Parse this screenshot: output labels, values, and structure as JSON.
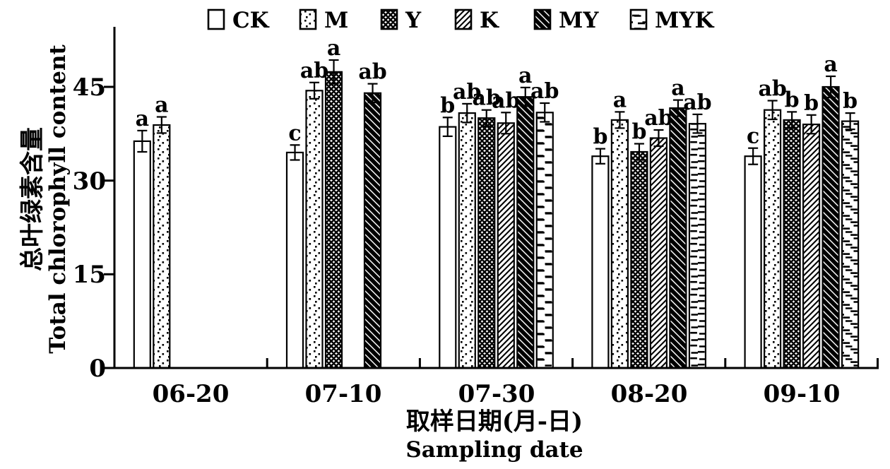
{
  "figure": {
    "background": "#ffffff",
    "foreground": "#000000"
  },
  "chart_data": {
    "type": "bar",
    "title": "",
    "categories": [
      "06-20",
      "07-10",
      "07-30",
      "08-20",
      "09-10"
    ],
    "series": [
      {
        "name": "CK",
        "pattern": "plain",
        "values": [
          36.3,
          34.5,
          38.6,
          33.9,
          33.9
        ],
        "errors": [
          1.7,
          1.2,
          1.5,
          1.2,
          1.3
        ],
        "letters": [
          "a",
          "c",
          "b",
          "b",
          "c"
        ]
      },
      {
        "name": "M",
        "pattern": "dots",
        "values": [
          38.9,
          44.4,
          40.8,
          39.7,
          41.3
        ],
        "errors": [
          1.3,
          1.3,
          1.5,
          1.3,
          1.5
        ],
        "letters": [
          "a",
          "ab",
          "ab",
          "a",
          "ab"
        ]
      },
      {
        "name": "Y",
        "pattern": "crosshatch",
        "values": [
          null,
          47.4,
          40.0,
          34.6,
          39.7
        ],
        "errors": [
          null,
          1.9,
          1.3,
          1.3,
          1.3
        ],
        "letters": [
          null,
          "a",
          "ab",
          "b",
          "b"
        ]
      },
      {
        "name": "K",
        "pattern": "diagonal-thin",
        "values": [
          null,
          null,
          39.2,
          36.8,
          39.0
        ],
        "errors": [
          null,
          null,
          1.7,
          1.3,
          1.5
        ],
        "letters": [
          null,
          null,
          "ab",
          "ab",
          "b"
        ]
      },
      {
        "name": "MY",
        "pattern": "diagonal-thick",
        "values": [
          null,
          44.0,
          43.4,
          41.6,
          45.0
        ],
        "errors": [
          null,
          1.5,
          1.5,
          1.3,
          1.7
        ],
        "letters": [
          null,
          "ab",
          "a",
          "a",
          "a"
        ]
      },
      {
        "name": "MYK",
        "pattern": "ladder-dash",
        "values": [
          null,
          null,
          40.9,
          39.1,
          39.5
        ],
        "errors": [
          null,
          null,
          1.5,
          1.5,
          1.3
        ],
        "letters": [
          null,
          null,
          "ab",
          "ab",
          "b"
        ]
      }
    ],
    "yticks": [
      "0",
      "15",
      "30",
      "45"
    ],
    "ylim": [
      0,
      54
    ],
    "ylabel_zh": "总叶绿素含量",
    "ylabel_en": "Total chlorophyll content",
    "xlabel_zh": "取样日期(月-日)",
    "xlabel_en": "Sampling date",
    "legend_position": "top",
    "grid": false,
    "error_bars": true,
    "significance_letters": true
  }
}
